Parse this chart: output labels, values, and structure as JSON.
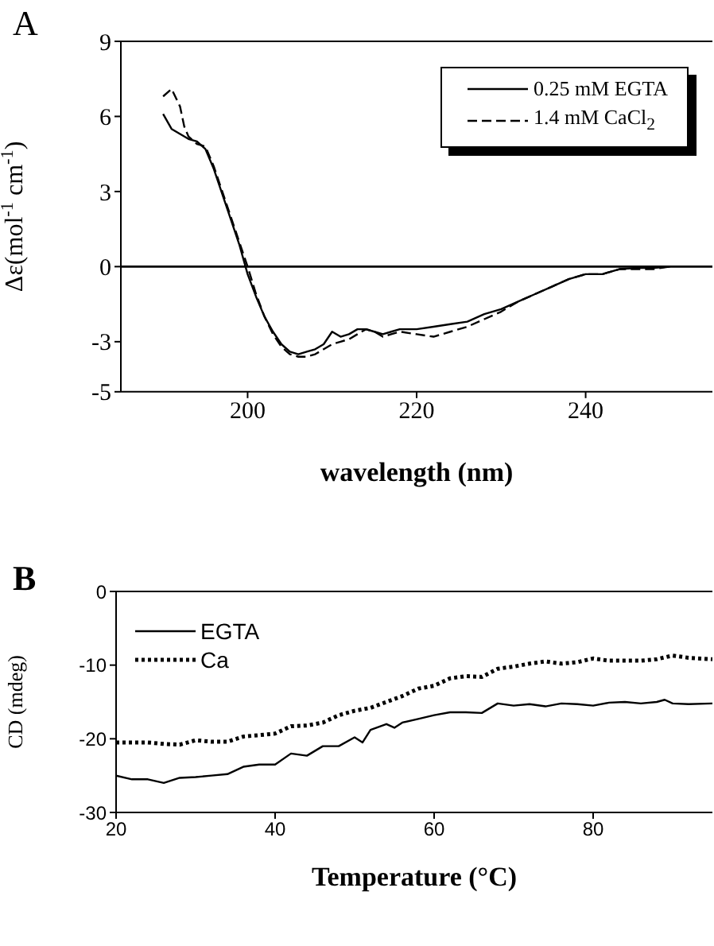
{
  "chart_data": [
    {
      "type": "line",
      "title": "A",
      "xlabel": "wavelength (nm)",
      "ylabel": "Δε(mol$^{-1}$ cm$^{-1}$)",
      "xlim": [
        185,
        255
      ],
      "xticks": [
        200,
        220,
        240
      ],
      "ylim": [
        -5,
        9
      ],
      "yticks": [
        -5,
        -3,
        0,
        3,
        6,
        9
      ],
      "grid": false,
      "legend": "top right",
      "marker": "none",
      "ref_lines": [
        {
          "axis": "y",
          "value": 0,
          "color": "#000000"
        }
      ],
      "series": [
        {
          "name": "0.25 mM EGTA",
          "color": "#000000",
          "line_style": "solid",
          "x": [
            190,
            191,
            192,
            193,
            194,
            195,
            196,
            197,
            198,
            199,
            200,
            201,
            202,
            203,
            204,
            205,
            206,
            207,
            208,
            209,
            210,
            211,
            212,
            213,
            214,
            215,
            216,
            217,
            218,
            220,
            222,
            224,
            226,
            228,
            230,
            232,
            234,
            236,
            238,
            240,
            242,
            244,
            246,
            248,
            250
          ],
          "values": [
            6.1,
            5.5,
            5.3,
            5.1,
            5.0,
            4.7,
            3.9,
            2.9,
            1.9,
            0.9,
            -0.3,
            -1.2,
            -2.0,
            -2.6,
            -3.1,
            -3.4,
            -3.5,
            -3.4,
            -3.3,
            -3.1,
            -2.6,
            -2.8,
            -2.7,
            -2.5,
            -2.5,
            -2.6,
            -2.7,
            -2.6,
            -2.5,
            -2.5,
            -2.4,
            -2.3,
            -2.2,
            -1.9,
            -1.7,
            -1.4,
            -1.1,
            -0.8,
            -0.5,
            -0.3,
            -0.3,
            -0.1,
            -0.05,
            -0.05,
            0
          ]
        },
        {
          "name": "1.4 mM CaCl$_{2}$",
          "color": "#000000",
          "line_style": "dashed",
          "x": [
            190,
            191,
            192,
            192.5,
            193,
            194,
            195,
            196,
            197,
            198,
            199,
            200,
            201,
            202,
            203,
            204,
            205,
            206,
            207,
            208,
            209,
            210,
            211,
            212,
            213,
            214,
            215,
            216,
            217,
            218,
            220,
            222,
            224,
            226,
            228,
            230,
            232,
            234,
            236,
            238,
            240,
            242,
            244,
            246,
            248,
            250
          ],
          "values": [
            6.8,
            7.1,
            6.4,
            5.6,
            5.2,
            4.9,
            4.8,
            4.0,
            3.0,
            2.0,
            1.0,
            0.0,
            -1.1,
            -2.0,
            -2.7,
            -3.2,
            -3.5,
            -3.6,
            -3.6,
            -3.5,
            -3.3,
            -3.1,
            -3.0,
            -2.9,
            -2.7,
            -2.5,
            -2.6,
            -2.8,
            -2.7,
            -2.6,
            -2.7,
            -2.8,
            -2.6,
            -2.4,
            -2.1,
            -1.8,
            -1.4,
            -1.1,
            -0.8,
            -0.5,
            -0.3,
            -0.3,
            -0.1,
            -0.1,
            -0.1,
            0
          ]
        }
      ]
    },
    {
      "type": "line",
      "title": "B",
      "xlabel": "Temperature (°C)",
      "ylabel": "CD (mdeg)",
      "xlim": [
        20,
        95
      ],
      "xticks": [
        20,
        40,
        60,
        80
      ],
      "ylim": [
        -30,
        0
      ],
      "yticks": [
        -30,
        -20,
        -10,
        0
      ],
      "grid": false,
      "legend": "top left",
      "marker": "none",
      "series": [
        {
          "name": "EGTA",
          "color": "#000000",
          "line_style": "solid",
          "x": [
            20,
            22,
            24,
            26,
            28,
            30,
            32,
            34,
            36,
            38,
            40,
            42,
            44,
            46,
            48,
            50,
            51,
            52,
            54,
            55,
            56,
            58,
            60,
            62,
            64,
            66,
            68,
            70,
            72,
            74,
            76,
            78,
            80,
            82,
            84,
            86,
            88,
            89,
            90,
            92,
            95
          ],
          "values": [
            -25,
            -25.5,
            -25.5,
            -26,
            -25.3,
            -25.2,
            -25,
            -24.8,
            -23.8,
            -23.5,
            -23.5,
            -22,
            -22.3,
            -21,
            -21,
            -19.8,
            -20.5,
            -18.8,
            -18,
            -18.5,
            -17.8,
            -17.3,
            -16.8,
            -16.4,
            -16.4,
            -16.5,
            -15.2,
            -15.5,
            -15.3,
            -15.6,
            -15.2,
            -15.3,
            -15.5,
            -15.1,
            -15,
            -15.2,
            -15,
            -14.7,
            -15.2,
            -15.3,
            -15.2
          ]
        },
        {
          "name": "Ca",
          "color": "#000000",
          "line_style": "dotted",
          "x": [
            20,
            24,
            26,
            28,
            30,
            32,
            34,
            36,
            38,
            40,
            42,
            44,
            46,
            48,
            50,
            52,
            54,
            56,
            58,
            60,
            62,
            64,
            66,
            68,
            70,
            72,
            74,
            76,
            78,
            80,
            82,
            84,
            86,
            88,
            90,
            92,
            95
          ],
          "values": [
            -20.5,
            -20.5,
            -20.7,
            -20.8,
            -20.2,
            -20.4,
            -20.4,
            -19.7,
            -19.5,
            -19.3,
            -18.3,
            -18.2,
            -17.8,
            -16.8,
            -16.2,
            -15.8,
            -15,
            -14.2,
            -13.2,
            -12.8,
            -11.8,
            -11.5,
            -11.6,
            -10.5,
            -10.2,
            -9.8,
            -9.5,
            -9.8,
            -9.6,
            -9.1,
            -9.4,
            -9.4,
            -9.4,
            -9.2,
            -8.7,
            -9,
            -9.2
          ]
        }
      ]
    }
  ]
}
